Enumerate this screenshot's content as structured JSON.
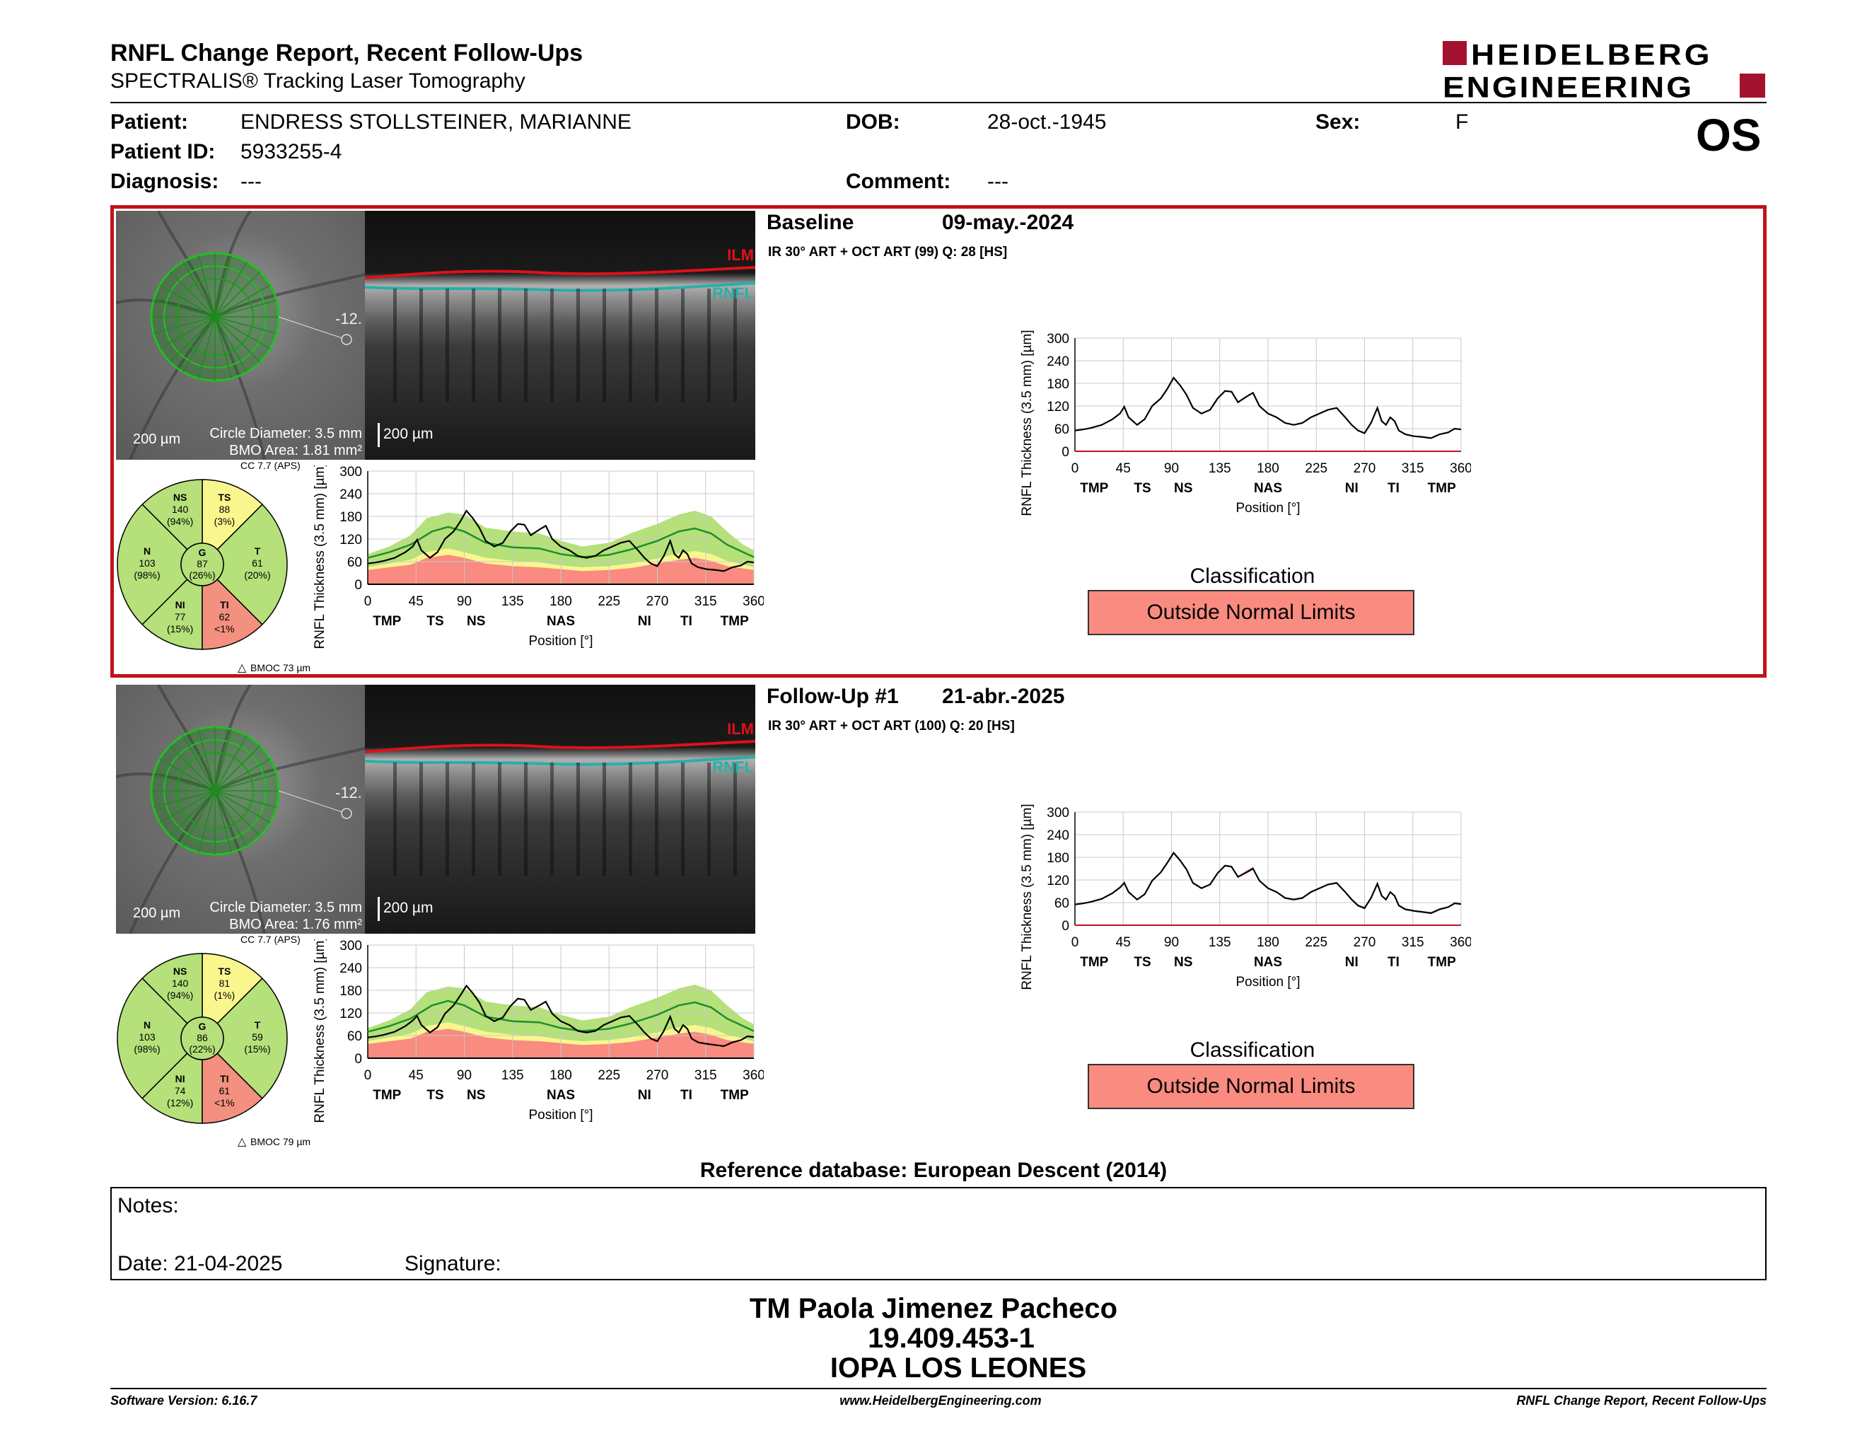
{
  "header": {
    "title": "RNFL Change Report, Recent Follow-Ups",
    "subtitle": "SPECTRALIS® Tracking Laser Tomography",
    "brand_line1": "HEIDELBERG",
    "brand_line2": "ENGINEERING",
    "eye": "OS"
  },
  "patient": {
    "patient_label": "Patient:",
    "patient_value": "ENDRESS STOLLSTEINER, MARIANNE",
    "dob_label": "DOB:",
    "dob_value": "28-oct.-1945",
    "sex_label": "Sex:",
    "sex_value": "F",
    "id_label": "Patient ID:",
    "id_value": "5933255-4",
    "diagnosis_label": "Diagnosis:",
    "diagnosis_value": "---",
    "comment_label": "Comment:",
    "comment_value": "---"
  },
  "exams": [
    {
      "label": "Baseline",
      "date": "09-may.-2024",
      "scan_info": "IR 30° ART + OCT ART (99) Q: 28 [HS]",
      "angle_label": "-12.",
      "scale_fundus": "200 µm",
      "circle_diameter": "Circle Diameter: 3.5 mm",
      "bmo_area": "BMO Area: 1.81 mm²",
      "scale_oct": "200 µm",
      "ilm": "ILM",
      "rnfl": "RNFL",
      "cc": "CC 7.7 (APS)",
      "bmoc": "BMOC 73 µm",
      "sectors": {
        "NS": {
          "name": "NS",
          "value": "140",
          "pct": "(94%)",
          "color": "#b5e07a"
        },
        "TS": {
          "name": "TS",
          "value": "88",
          "pct": "(3%)",
          "color": "#faf68e"
        },
        "N": {
          "name": "N",
          "value": "103",
          "pct": "(98%)",
          "color": "#b5e07a"
        },
        "G": {
          "name": "G",
          "value": "87",
          "pct": "(26%)",
          "color": "#b5e07a"
        },
        "T": {
          "name": "T",
          "value": "61",
          "pct": "(20%)",
          "color": "#b5e07a"
        },
        "NI": {
          "name": "NI",
          "value": "77",
          "pct": "(15%)",
          "color": "#b5e07a"
        },
        "TI": {
          "name": "TI",
          "value": "62",
          "pct": "<1%",
          "color": "#f4907f"
        }
      },
      "classification_label": "Classification",
      "classification": "Outside Normal Limits"
    },
    {
      "label": "Follow-Up #1",
      "date": "21-abr.-2025",
      "scan_info": "IR 30° ART + OCT ART (100) Q: 20 [HS]",
      "angle_label": "-12.",
      "scale_fundus": "200 µm",
      "circle_diameter": "Circle Diameter: 3.5 mm",
      "bmo_area": "BMO Area: 1.76 mm²",
      "scale_oct": "200 µm",
      "ilm": "ILM",
      "rnfl": "RNFL",
      "cc": "CC 7.7 (APS)",
      "bmoc": "BMOC 79 µm",
      "sectors": {
        "NS": {
          "name": "NS",
          "value": "140",
          "pct": "(94%)",
          "color": "#b5e07a"
        },
        "TS": {
          "name": "TS",
          "value": "81",
          "pct": "(1%)",
          "color": "#faf68e"
        },
        "N": {
          "name": "N",
          "value": "103",
          "pct": "(98%)",
          "color": "#b5e07a"
        },
        "G": {
          "name": "G",
          "value": "86",
          "pct": "(22%)",
          "color": "#b5e07a"
        },
        "T": {
          "name": "T",
          "value": "59",
          "pct": "(15%)",
          "color": "#b5e07a"
        },
        "NI": {
          "name": "NI",
          "value": "74",
          "pct": "(12%)",
          "color": "#b5e07a"
        },
        "TI": {
          "name": "TI",
          "value": "61",
          "pct": "<1%",
          "color": "#f4907f"
        }
      },
      "classification_label": "Classification",
      "classification": "Outside Normal Limits"
    }
  ],
  "chart_data": {
    "type": "line",
    "ylabel": "RNFL Thickness (3.5 mm) [µm]",
    "xlabel": "Position [°]",
    "xlim": [
      0,
      360
    ],
    "ylim": [
      0,
      300
    ],
    "x_ticks": [
      "0",
      "45",
      "90",
      "135",
      "180",
      "225",
      "270",
      "315",
      "360"
    ],
    "y_ticks": [
      "0",
      "60",
      "120",
      "180",
      "240",
      "300"
    ],
    "region_labels": [
      {
        "label": "TMP",
        "pos": 18
      },
      {
        "label": "TS",
        "pos": 63
      },
      {
        "label": "NS",
        "pos": 101
      },
      {
        "label": "NAS",
        "pos": 180
      },
      {
        "label": "NI",
        "pos": 258
      },
      {
        "label": "TI",
        "pos": 297
      },
      {
        "label": "TMP",
        "pos": 342
      }
    ],
    "normal_median": [
      [
        0,
        70
      ],
      [
        20,
        85
      ],
      [
        40,
        105
      ],
      [
        60,
        140
      ],
      [
        75,
        152
      ],
      [
        90,
        140
      ],
      [
        110,
        110
      ],
      [
        135,
        98
      ],
      [
        160,
        95
      ],
      [
        180,
        80
      ],
      [
        200,
        72
      ],
      [
        225,
        78
      ],
      [
        245,
        92
      ],
      [
        270,
        115
      ],
      [
        290,
        140
      ],
      [
        305,
        148
      ],
      [
        320,
        135
      ],
      [
        335,
        105
      ],
      [
        350,
        85
      ],
      [
        360,
        72
      ]
    ],
    "normal_upper": [
      [
        0,
        80
      ],
      [
        20,
        100
      ],
      [
        40,
        130
      ],
      [
        55,
        175
      ],
      [
        75,
        190
      ],
      [
        90,
        185
      ],
      [
        110,
        150
      ],
      [
        135,
        140
      ],
      [
        160,
        135
      ],
      [
        180,
        115
      ],
      [
        200,
        100
      ],
      [
        225,
        110
      ],
      [
        245,
        135
      ],
      [
        270,
        160
      ],
      [
        290,
        185
      ],
      [
        305,
        195
      ],
      [
        320,
        180
      ],
      [
        335,
        140
      ],
      [
        350,
        105
      ],
      [
        360,
        90
      ]
    ],
    "borderline_lower": [
      [
        0,
        45
      ],
      [
        20,
        55
      ],
      [
        40,
        65
      ],
      [
        55,
        85
      ],
      [
        75,
        95
      ],
      [
        90,
        85
      ],
      [
        110,
        70
      ],
      [
        135,
        62
      ],
      [
        160,
        58
      ],
      [
        180,
        50
      ],
      [
        200,
        45
      ],
      [
        225,
        48
      ],
      [
        245,
        55
      ],
      [
        270,
        68
      ],
      [
        290,
        82
      ],
      [
        305,
        88
      ],
      [
        320,
        80
      ],
      [
        335,
        62
      ],
      [
        350,
        52
      ],
      [
        360,
        45
      ]
    ],
    "outside_lower": [
      [
        0,
        38
      ],
      [
        20,
        45
      ],
      [
        40,
        52
      ],
      [
        55,
        70
      ],
      [
        75,
        78
      ],
      [
        90,
        70
      ],
      [
        110,
        55
      ],
      [
        135,
        48
      ],
      [
        160,
        45
      ],
      [
        180,
        40
      ],
      [
        200,
        35
      ],
      [
        225,
        38
      ],
      [
        245,
        43
      ],
      [
        270,
        55
      ],
      [
        290,
        65
      ],
      [
        305,
        70
      ],
      [
        320,
        62
      ],
      [
        335,
        48
      ],
      [
        350,
        42
      ],
      [
        360,
        38
      ]
    ],
    "series": [
      {
        "values": [
          [
            0,
            55
          ],
          [
            8,
            58
          ],
          [
            15,
            62
          ],
          [
            25,
            70
          ],
          [
            35,
            85
          ],
          [
            42,
            100
          ],
          [
            46,
            118
          ],
          [
            50,
            90
          ],
          [
            58,
            70
          ],
          [
            65,
            85
          ],
          [
            72,
            120
          ],
          [
            80,
            140
          ],
          [
            86,
            165
          ],
          [
            92,
            195
          ],
          [
            98,
            175
          ],
          [
            104,
            150
          ],
          [
            110,
            115
          ],
          [
            118,
            100
          ],
          [
            126,
            110
          ],
          [
            133,
            140
          ],
          [
            140,
            160
          ],
          [
            146,
            158
          ],
          [
            152,
            130
          ],
          [
            160,
            145
          ],
          [
            166,
            155
          ],
          [
            172,
            120
          ],
          [
            180,
            100
          ],
          [
            188,
            90
          ],
          [
            196,
            75
          ],
          [
            204,
            70
          ],
          [
            212,
            75
          ],
          [
            220,
            90
          ],
          [
            228,
            100
          ],
          [
            236,
            110
          ],
          [
            244,
            115
          ],
          [
            252,
            90
          ],
          [
            258,
            70
          ],
          [
            264,
            55
          ],
          [
            270,
            48
          ],
          [
            276,
            75
          ],
          [
            282,
            115
          ],
          [
            286,
            80
          ],
          [
            290,
            70
          ],
          [
            294,
            90
          ],
          [
            298,
            80
          ],
          [
            302,
            55
          ],
          [
            308,
            45
          ],
          [
            316,
            40
          ],
          [
            324,
            38
          ],
          [
            332,
            35
          ],
          [
            340,
            45
          ],
          [
            348,
            50
          ],
          [
            354,
            60
          ],
          [
            360,
            58
          ]
        ]
      },
      {
        "values": [
          [
            0,
            55
          ],
          [
            8,
            58
          ],
          [
            15,
            62
          ],
          [
            25,
            70
          ],
          [
            35,
            85
          ],
          [
            42,
            100
          ],
          [
            46,
            112
          ],
          [
            50,
            88
          ],
          [
            58,
            68
          ],
          [
            65,
            82
          ],
          [
            72,
            118
          ],
          [
            80,
            140
          ],
          [
            86,
            165
          ],
          [
            92,
            192
          ],
          [
            98,
            172
          ],
          [
            104,
            148
          ],
          [
            110,
            112
          ],
          [
            118,
            98
          ],
          [
            126,
            108
          ],
          [
            133,
            138
          ],
          [
            140,
            158
          ],
          [
            146,
            155
          ],
          [
            152,
            128
          ],
          [
            160,
            140
          ],
          [
            166,
            150
          ],
          [
            172,
            118
          ],
          [
            180,
            98
          ],
          [
            188,
            88
          ],
          [
            196,
            72
          ],
          [
            204,
            68
          ],
          [
            212,
            72
          ],
          [
            220,
            88
          ],
          [
            228,
            98
          ],
          [
            236,
            108
          ],
          [
            244,
            112
          ],
          [
            252,
            88
          ],
          [
            258,
            68
          ],
          [
            264,
            52
          ],
          [
            270,
            45
          ],
          [
            276,
            72
          ],
          [
            282,
            110
          ],
          [
            286,
            78
          ],
          [
            290,
            68
          ],
          [
            294,
            88
          ],
          [
            298,
            78
          ],
          [
            302,
            52
          ],
          [
            308,
            42
          ],
          [
            316,
            38
          ],
          [
            324,
            35
          ],
          [
            332,
            32
          ],
          [
            340,
            42
          ],
          [
            348,
            48
          ],
          [
            354,
            58
          ],
          [
            360,
            56
          ]
        ]
      }
    ]
  },
  "footer": {
    "reference_db": "Reference database: European Descent (2014)",
    "notes_label": "Notes:",
    "date_label": "Date: 21-04-2025",
    "signature_label": "Signature:",
    "operator_name": "TM Paola Jimenez Pacheco",
    "operator_id": "19.409.453-1",
    "institution": "IOPA LOS LEONES",
    "software_version": "Software Version: 6.16.7",
    "website": "www.HeidelbergEngineering.com",
    "report_name": "RNFL Change Report, Recent Follow-Ups"
  },
  "colors": {
    "frame_red": "#c0121a",
    "outside_normal": "#f98b80",
    "borderline": "#faf68e",
    "within_normal": "#b5e07a",
    "brand_red": "#a3122e",
    "ilm_red": "#e0101a",
    "rnfl_teal": "#28b0a8"
  }
}
